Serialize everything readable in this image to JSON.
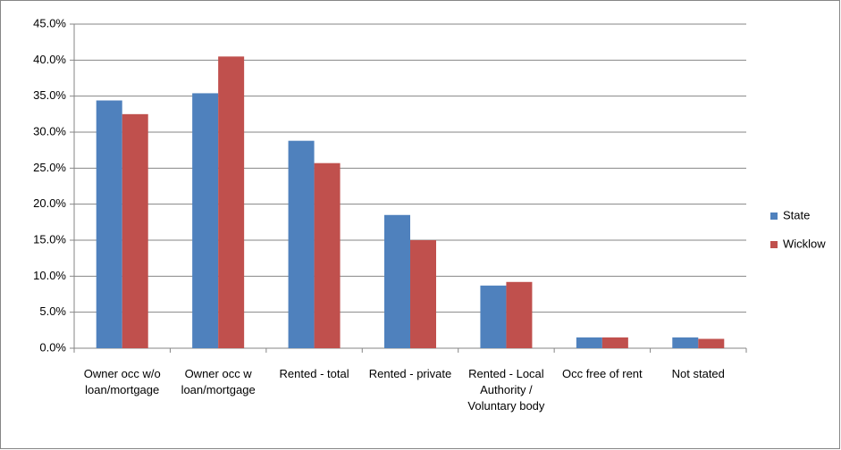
{
  "chart_data": {
    "type": "bar",
    "categories": [
      "Owner occ w/o loan/mortgage",
      "Owner occ w loan/mortgage",
      "Rented - total",
      "Rented - private",
      "Rented - Local Authority / Voluntary body",
      "Occ free of rent",
      "Not stated"
    ],
    "series": [
      {
        "name": "State",
        "color": "#4f81bd",
        "values": [
          34.4,
          35.4,
          28.8,
          18.5,
          8.7,
          1.5,
          1.5
        ]
      },
      {
        "name": "Wicklow",
        "color": "#c0504d",
        "values": [
          32.5,
          40.5,
          25.7,
          15.0,
          9.2,
          1.5,
          1.3
        ]
      }
    ],
    "ylim": [
      0,
      45
    ],
    "yticks": [
      {
        "value": 0,
        "label": "0.0%"
      },
      {
        "value": 5,
        "label": "5.0%"
      },
      {
        "value": 10,
        "label": "10.0%"
      },
      {
        "value": 15,
        "label": "15.0%"
      },
      {
        "value": 20,
        "label": "20.0%"
      },
      {
        "value": 25,
        "label": "25.0%"
      },
      {
        "value": 30,
        "label": "30.0%"
      },
      {
        "value": 35,
        "label": "35.0%"
      },
      {
        "value": 40,
        "label": "40.0%"
      },
      {
        "value": 45,
        "label": "45.0%"
      }
    ],
    "grid": true,
    "legend": "right"
  }
}
